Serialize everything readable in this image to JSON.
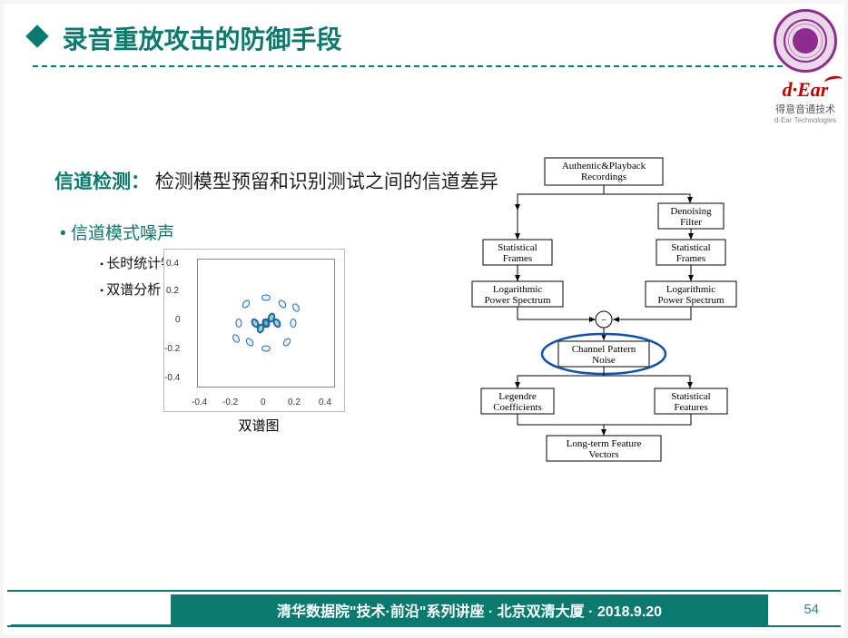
{
  "header": {
    "title": "录音重放攻击的防御手段"
  },
  "logos": {
    "dear": "d·Ear",
    "dear_sub": "得意音通技术",
    "dear_sub2": "d-Ear Technologies"
  },
  "section": {
    "highlight": "信道检测：",
    "rest": "检测模型预留和识别测试之间的信道差异"
  },
  "bullet1": "信道模式噪声",
  "bullet1_sub1": "长时统计特征（Legendre系数）",
  "bullet1_sub2": "双谱分析",
  "chart": {
    "caption": "双谱图",
    "x_ticks": [
      "-0.4",
      "-0.2",
      "0",
      "0.2",
      "0.4"
    ],
    "y_ticks": [
      "-0.4",
      "-0.2",
      "0",
      "0.2",
      "0.4"
    ],
    "points": [
      {
        "x": 50,
        "y": 50,
        "cls": "center",
        "r": 30
      },
      {
        "x": 50,
        "y": 50,
        "cls": "center",
        "r": -30
      },
      {
        "x": 46,
        "y": 46,
        "cls": "center",
        "r": 20
      },
      {
        "x": 54,
        "y": 54,
        "cls": "center",
        "r": 20
      },
      {
        "x": 42,
        "y": 50,
        "cls": "center",
        "r": -30
      },
      {
        "x": 58,
        "y": 50,
        "cls": "center",
        "r": -30
      },
      {
        "x": 38,
        "y": 35,
        "r": -40
      },
      {
        "x": 62,
        "y": 65,
        "r": -40
      },
      {
        "x": 30,
        "y": 50,
        "r": 0
      },
      {
        "x": 70,
        "y": 50,
        "r": 0
      },
      {
        "x": 50,
        "y": 30,
        "r": 90
      },
      {
        "x": 50,
        "y": 70,
        "r": 90
      },
      {
        "x": 35,
        "y": 65,
        "r": 40
      },
      {
        "x": 65,
        "y": 35,
        "r": 40
      },
      {
        "x": 28,
        "y": 38,
        "r": -30
      },
      {
        "x": 72,
        "y": 62,
        "r": -30
      }
    ]
  },
  "flow": {
    "n1": "Authentic&Playback",
    "n1b": "Recordings",
    "n2": "Denoising",
    "n2b": "Filter",
    "n3": "Statistical",
    "n3b": "Frames",
    "n4": "Statistical",
    "n4b": "Frames",
    "n5": "Logarithmic",
    "n5b": "Power Spectrum",
    "n6": "Logarithmic",
    "n6b": "Power Spectrum",
    "n7": "Channel Pattern",
    "n7b": "Noise",
    "n8": "Legendre",
    "n8b": "Coefficients",
    "n9": "Statistical",
    "n9b": "Features",
    "n10": "Long-term Feature",
    "n10b": "Vectors",
    "minus": "−"
  },
  "footer": {
    "text": "清华数据院\"技术·前沿\"系列讲座 · 北京双清大厦 · 2018.9.20",
    "page": "54"
  }
}
